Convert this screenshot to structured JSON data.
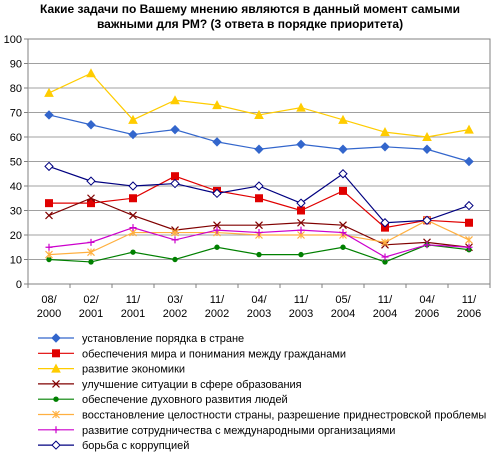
{
  "chart_data": {
    "type": "line",
    "title_line1": "Какие задачи по Вашему мнению являются в данный момент самыми",
    "title_line2": "важными для РМ? (3 ответа в порядке приоритета)",
    "categories": [
      [
        "08/",
        "2000"
      ],
      [
        "02/",
        "2001"
      ],
      [
        "11/",
        "2001"
      ],
      [
        "03/",
        "2002"
      ],
      [
        "11/",
        "2002"
      ],
      [
        "04/",
        "2003"
      ],
      [
        "11/",
        "2003"
      ],
      [
        "05/",
        "2004"
      ],
      [
        "11/",
        "2004"
      ],
      [
        "04/",
        "2006"
      ],
      [
        "11/",
        "2006"
      ]
    ],
    "ylim": [
      0,
      100
    ],
    "yticks": [
      "0",
      "10",
      "20",
      "30",
      "40",
      "50",
      "60",
      "70",
      "80",
      "90",
      "100"
    ],
    "grid": "horizontal",
    "legend_position": "bottom",
    "series": [
      {
        "name": "установление порядка в стране",
        "color": "#3366CC",
        "marker": "diamond-filled",
        "values": [
          69,
          65,
          61,
          63,
          58,
          55,
          57,
          55,
          56,
          55,
          50
        ]
      },
      {
        "name": "обеспечения мира и понимания между гражданами",
        "color": "#E00000",
        "marker": "square",
        "values": [
          33,
          33,
          35,
          44,
          38,
          35,
          30,
          38,
          23,
          26,
          25
        ]
      },
      {
        "name": "развитие экономики",
        "color": "#FFCC00",
        "marker": "triangle",
        "values": [
          78,
          86,
          67,
          75,
          73,
          69,
          72,
          67,
          62,
          60,
          63
        ]
      },
      {
        "name": "улучшение ситуации в сфере образования",
        "color": "#800000",
        "marker": "x",
        "values": [
          28,
          35,
          28,
          22,
          24,
          24,
          25,
          24,
          16,
          17,
          15
        ]
      },
      {
        "name": "обеспечение духовного развития людей",
        "color": "#008000",
        "marker": "circle",
        "values": [
          10,
          9,
          13,
          10,
          15,
          12,
          12,
          15,
          9,
          16,
          14
        ]
      },
      {
        "name": "восстановление целостности страны, разрешение приднестровской проблемы",
        "color": "#FFB040",
        "marker": "star",
        "values": [
          12,
          13,
          21,
          21,
          21,
          20,
          20,
          20,
          17,
          26,
          18
        ]
      },
      {
        "name": "развитие сотрудничества с международными организациями",
        "color": "#CC00CC",
        "marker": "plus",
        "values": [
          15,
          17,
          23,
          18,
          22,
          21,
          22,
          21,
          11,
          16,
          15
        ]
      },
      {
        "name": "борьба с коррупцией",
        "color": "#000080",
        "marker": "diamond-open",
        "values": [
          48,
          42,
          40,
          41,
          37,
          40,
          33,
          45,
          25,
          26,
          32
        ]
      }
    ]
  }
}
